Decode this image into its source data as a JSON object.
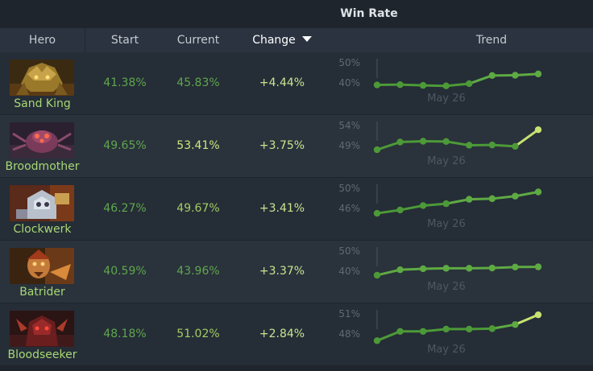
{
  "table": {
    "group_title": "Win Rate",
    "columns": {
      "hero": "Hero",
      "start": "Start",
      "current": "Current",
      "change": "Change",
      "trend": "Trend"
    }
  },
  "colors": {
    "good": "#5fa74c",
    "better": "#a3cd62",
    "best": "#cde97e"
  },
  "rows": [
    {
      "hero": "Sand King",
      "portrait_icon": "sand-king-portrait",
      "start": "41.38%",
      "current": "45.83%",
      "current_color": "#5fa74c",
      "change": "+4.44%",
      "trend": {
        "y_top_label": "50%",
        "y_bottom_label": "40%",
        "date_label": "May 26",
        "ymin": 37,
        "ymax": 51,
        "values": [
          41.38,
          41.5,
          41.2,
          41.0,
          41.9,
          45.2,
          45.3,
          45.83
        ]
      }
    },
    {
      "hero": "Broodmother",
      "portrait_icon": "broodmother-portrait",
      "start": "49.65%",
      "current": "53.41%",
      "current_color": "#cde97e",
      "change": "+3.75%",
      "trend": {
        "y_top_label": "54%",
        "y_bottom_label": "49%",
        "date_label": "May 26",
        "ymin": 48,
        "ymax": 54.5,
        "values": [
          49.65,
          51.1,
          51.25,
          51.2,
          50.5,
          50.55,
          50.3,
          53.41
        ]
      }
    },
    {
      "hero": "Clockwerk",
      "portrait_icon": "clockwerk-portrait",
      "start": "46.27%",
      "current": "49.67%",
      "current_color": "#a3cd62",
      "change": "+3.41%",
      "trend": {
        "y_top_label": "50%",
        "y_bottom_label": "46%",
        "date_label": "May 26",
        "ymin": 45,
        "ymax": 50.5,
        "values": [
          46.27,
          46.8,
          47.5,
          47.8,
          48.5,
          48.6,
          49.0,
          49.67
        ]
      }
    },
    {
      "hero": "Batrider",
      "portrait_icon": "batrider-portrait",
      "start": "40.59%",
      "current": "43.96%",
      "current_color": "#5fa74c",
      "change": "+3.37%",
      "trend": {
        "y_top_label": "50%",
        "y_bottom_label": "40%",
        "date_label": "May 26",
        "ymin": 37,
        "ymax": 51,
        "values": [
          40.59,
          42.8,
          43.2,
          43.4,
          43.4,
          43.5,
          43.9,
          43.96
        ]
      }
    },
    {
      "hero": "Bloodseeker",
      "portrait_icon": "bloodseeker-portrait",
      "start": "48.18%",
      "current": "51.02%",
      "current_color": "#a3cd62",
      "change": "+2.84%",
      "trend": {
        "y_top_label": "51%",
        "y_bottom_label": "48%",
        "date_label": "May 26",
        "ymin": 47.5,
        "ymax": 51.3,
        "values": [
          48.18,
          49.2,
          49.2,
          49.45,
          49.45,
          49.5,
          49.95,
          51.02
        ]
      }
    }
  ]
}
